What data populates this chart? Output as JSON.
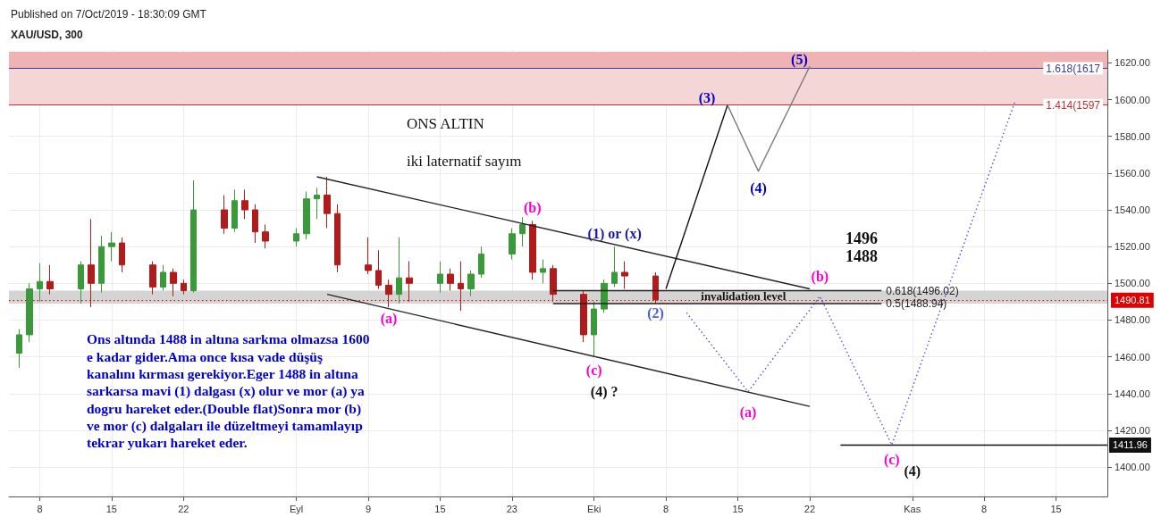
{
  "chart_data": {
    "type": "candlestick",
    "title": "XAU/USD, 300",
    "subtitle": "Published on 7/Oct/2019 - 18:30:09 GMT",
    "x": [
      "2019-08-06",
      "2019-08-07",
      "2019-08-08",
      "2019-08-09",
      "2019-08-12",
      "2019-08-13",
      "2019-08-14",
      "2019-08-15",
      "2019-08-16",
      "2019-08-19",
      "2019-08-20",
      "2019-08-21",
      "2019-08-22",
      "2019-08-23",
      "2019-08-26",
      "2019-08-27",
      "2019-08-28",
      "2019-08-29",
      "2019-08-30",
      "2019-09-02",
      "2019-09-03",
      "2019-09-04",
      "2019-09-05",
      "2019-09-06",
      "2019-09-09",
      "2019-09-10",
      "2019-09-11",
      "2019-09-12",
      "2019-09-13",
      "2019-09-16",
      "2019-09-17",
      "2019-09-18",
      "2019-09-19",
      "2019-09-20",
      "2019-09-23",
      "2019-09-24",
      "2019-09-25",
      "2019-09-26",
      "2019-09-27",
      "2019-09-30",
      "2019-10-01",
      "2019-10-02",
      "2019-10-03",
      "2019-10-04",
      "2019-10-07"
    ],
    "ohlc": [
      [
        1462,
        1475,
        1454,
        1472
      ],
      [
        1472,
        1500,
        1468,
        1497
      ],
      [
        1497,
        1511,
        1490,
        1501
      ],
      [
        1501,
        1510,
        1494,
        1497
      ],
      [
        1497,
        1512,
        1489,
        1510
      ],
      [
        1510,
        1535,
        1487,
        1500
      ],
      [
        1500,
        1526,
        1495,
        1520
      ],
      [
        1520,
        1528,
        1512,
        1522
      ],
      [
        1522,
        1525,
        1506,
        1510
      ],
      [
        1510,
        1512,
        1494,
        1498
      ],
      [
        1498,
        1510,
        1496,
        1506
      ],
      [
        1506,
        1508,
        1493,
        1500
      ],
      [
        1500,
        1502,
        1494,
        1496
      ],
      [
        1496,
        1556,
        1495,
        1540
      ],
      [
        1540,
        1548,
        1527,
        1530
      ],
      [
        1530,
        1551,
        1528,
        1545
      ],
      [
        1545,
        1551,
        1535,
        1540
      ],
      [
        1540,
        1543,
        1522,
        1528
      ],
      [
        1528,
        1532,
        1519,
        1523
      ],
      [
        1523,
        1530,
        1520,
        1527
      ],
      [
        1527,
        1550,
        1524,
        1546
      ],
      [
        1546,
        1552,
        1535,
        1548
      ],
      [
        1548,
        1558,
        1530,
        1538
      ],
      [
        1538,
        1543,
        1506,
        1510
      ],
      [
        1510,
        1525,
        1505,
        1507
      ],
      [
        1507,
        1518,
        1497,
        1499
      ],
      [
        1499,
        1502,
        1487,
        1494
      ],
      [
        1494,
        1525,
        1489,
        1503
      ],
      [
        1503,
        1512,
        1490,
        1500
      ],
      [
        1500,
        1512,
        1495,
        1505
      ],
      [
        1505,
        1508,
        1496,
        1500
      ],
      [
        1500,
        1512,
        1485,
        1497
      ],
      [
        1497,
        1507,
        1493,
        1505
      ],
      [
        1505,
        1520,
        1503,
        1516
      ],
      [
        1516,
        1530,
        1513,
        1527
      ],
      [
        1527,
        1536,
        1520,
        1532
      ],
      [
        1532,
        1534,
        1502,
        1506
      ],
      [
        1506,
        1513,
        1500,
        1508
      ],
      [
        1508,
        1510,
        1490,
        1494
      ],
      [
        1494,
        1496,
        1468,
        1472
      ],
      [
        1472,
        1490,
        1460,
        1486
      ],
      [
        1486,
        1502,
        1484,
        1500
      ],
      [
        1500,
        1520,
        1498,
        1506
      ],
      [
        1506,
        1512,
        1497,
        1504
      ],
      [
        1504,
        1506,
        1489,
        1491
      ]
    ],
    "colors": [
      "#3a9a3a",
      "#3a9a3a",
      "#3a9a3a",
      "#b01c1c",
      "#3a9a3a",
      "#b01c1c",
      "#3a9a3a",
      "#3a9a3a",
      "#b01c1c",
      "#b01c1c",
      "#3a9a3a",
      "#b01c1c",
      "#b01c1c",
      "#3a9a3a",
      "#b01c1c",
      "#3a9a3a",
      "#b01c1c",
      "#b01c1c",
      "#b01c1c",
      "#3a9a3a",
      "#3a9a3a",
      "#3a9a3a",
      "#b01c1c",
      "#b01c1c",
      "#b01c1c",
      "#b01c1c",
      "#b01c1c",
      "#3a9a3a",
      "#b01c1c",
      "#3a9a3a",
      "#b01c1c",
      "#b01c1c",
      "#3a9a3a",
      "#3a9a3a",
      "#3a9a3a",
      "#3a9a3a",
      "#b01c1c",
      "#3a9a3a",
      "#b01c1c",
      "#b01c1c",
      "#3a9a3a",
      "#3a9a3a",
      "#3a9a3a",
      "#b01c1c",
      "#b01c1c"
    ],
    "series": [
      {
        "type": "line",
        "x": [
          "2019-09-04",
          "2019-10-22"
        ],
        "values": [
          1558,
          1497
        ],
        "color": "#222222",
        "line_style": "solid"
      },
      {
        "type": "line",
        "x": [
          "2019-09-05",
          "2019-10-22"
        ],
        "values": [
          1494,
          1433
        ],
        "color": "#222222",
        "line_style": "solid"
      },
      {
        "type": "line",
        "x": [
          "2019-10-08",
          "2019-10-14"
        ],
        "values": [
          1497,
          1597
        ],
        "color": "#111111",
        "line_style": "solid"
      },
      {
        "type": "line",
        "x": [
          "2019-10-14",
          "2019-10-17",
          "2019-10-22"
        ],
        "values": [
          1597,
          1561,
          1618
        ],
        "color": "#777777",
        "line_style": "solid"
      },
      {
        "type": "line",
        "x": [
          "2019-10-10",
          "2019-10-16",
          "2019-10-23",
          "2019-10-30",
          "2019-11-11"
        ],
        "values": [
          1484,
          1441,
          1493,
          1412,
          1599
        ],
        "color": "#5050e0",
        "line_style": "dotted"
      },
      {
        "type": "line",
        "x": [
          "2019-09-27",
          "2019-10-29"
        ],
        "values": [
          1496.02,
          1496.02
        ],
        "color": "#222222",
        "line_style": "solid",
        "value_labels": [
          null,
          "0.618(1496.02)"
        ]
      },
      {
        "type": "line",
        "x": [
          "2019-09-27",
          "2019-10-29"
        ],
        "values": [
          1488.94,
          1488.94
        ],
        "color": "#222222",
        "line_style": "solid",
        "value_labels": [
          null,
          "0.5(1488.94)"
        ]
      },
      {
        "type": "line",
        "x": [
          "2019-10-25",
          "2019-11-20"
        ],
        "values": [
          1411.96,
          1411.96
        ],
        "color": "#111111",
        "line_style": "solid",
        "value_labels": [
          null,
          "1411.96"
        ]
      }
    ],
    "xlim": [
      "2019-08-05",
      "2019-11-20"
    ],
    "xticks": [
      {
        "value": "2019-08-08",
        "label": "8"
      },
      {
        "value": "2019-08-15",
        "label": "15"
      },
      {
        "value": "2019-08-22",
        "label": "22"
      },
      {
        "value": "2019-09-02",
        "label": "Eyl"
      },
      {
        "value": "2019-09-09",
        "label": "9"
      },
      {
        "value": "2019-09-16",
        "label": "15"
      },
      {
        "value": "2019-09-23",
        "label": "23"
      },
      {
        "value": "2019-10-01",
        "label": "Eki"
      },
      {
        "value": "2019-10-08",
        "label": "8"
      },
      {
        "value": "2019-10-15",
        "label": "15"
      },
      {
        "value": "2019-10-22",
        "label": "22"
      },
      {
        "value": "2019-11-01",
        "label": "Kas"
      },
      {
        "value": "2019-11-08",
        "label": "8"
      },
      {
        "value": "2019-11-15",
        "label": "15"
      }
    ],
    "ylim": [
      1384,
      1627
    ],
    "yticks": [
      {
        "value": 1400,
        "label": "1400.00"
      },
      {
        "value": 1420,
        "label": "1420.00"
      },
      {
        "value": 1440,
        "label": "1440.00"
      },
      {
        "value": 1460,
        "label": "1460.00"
      },
      {
        "value": 1480,
        "label": "1480.00"
      },
      {
        "value": 1500,
        "label": "1500.00"
      },
      {
        "value": 1520,
        "label": "1520.00"
      },
      {
        "value": 1540,
        "label": "1540.00"
      },
      {
        "value": 1560,
        "label": "1560.00"
      },
      {
        "value": 1580,
        "label": "1580.00"
      },
      {
        "value": 1600,
        "label": "1600.00"
      },
      {
        "value": 1620,
        "label": "1620.00"
      }
    ],
    "grid": true,
    "marker": "none",
    "ref_lines": [
      {
        "axis": "y",
        "value": 1617,
        "label": "1.618(1617",
        "color": "#3b3b9a",
        "line_style": "solid"
      },
      {
        "axis": "y",
        "value": 1597,
        "label": "1.414(1597",
        "color": "#c03030",
        "line_style": "solid"
      },
      {
        "axis": "y",
        "value": 1490.81,
        "label": "1490.81",
        "color": "#e00000",
        "line_style": "dotted"
      }
    ],
    "bands": [
      {
        "axis": "y",
        "from": 1617,
        "to": 1626,
        "color": "#efb3b3"
      },
      {
        "axis": "y",
        "from": 1597,
        "to": 1617,
        "color": "#f5d6d6"
      },
      {
        "axis": "y",
        "from": 1488.94,
        "to": 1496.02,
        "label": "invalidation level",
        "color": "#d4d4d4"
      }
    ],
    "annotations": [
      "(5)",
      "(3)",
      "(4)",
      "(1) or (x)",
      "(2)",
      "(b)",
      "(a)",
      "(c)",
      "(4) ?",
      "(a)",
      "(b)",
      "(c)",
      "(4)",
      "ONS ALTIN",
      "iki laternatif sayım",
      "1496",
      "1488",
      "Ons altında 1488 in altına sarkma olmazsa 1600\ne kadar gider.Ama once kısa vade düşüş\nkanalını kırması gerekiyor.Eger 1488 in altına\nsarkarsa mavi (1) dalgası (x) olur ve mor (a) ya\ndogru hareket eder.(Double flat)Sonra mor (b)\nve mor (c) dalgaları ile düzeltmeyi tamamlayıp\ntekrar yukarı hareket eder."
    ]
  }
}
